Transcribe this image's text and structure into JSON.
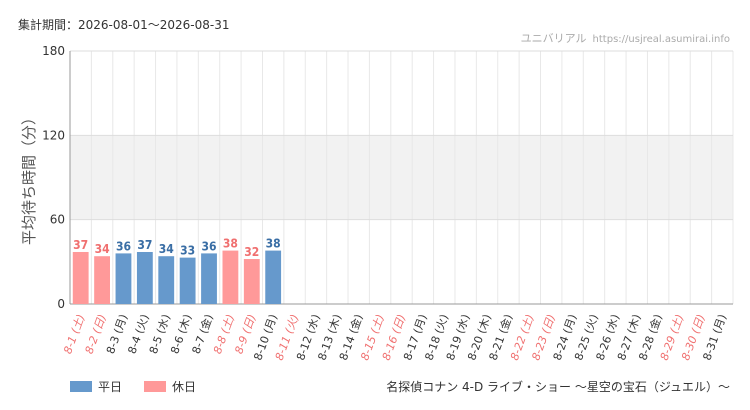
{
  "header": {
    "period": "集計期間：2026-08-01～2026-08-31",
    "site_name": "ユニバリアル",
    "site_url": "https://usjreal.asumirai.info"
  },
  "footer": {
    "attraction": "名探偵コナン 4-D ライブ・ショー ～星空の宝石（ジュエル）～"
  },
  "legend": [
    {
      "label": "平日",
      "color": "#6699cc"
    },
    {
      "label": "休日",
      "color": "#ff9999"
    }
  ],
  "chart_data": {
    "type": "bar",
    "ylabel": "平均待ち時間（分）",
    "ylim": [
      0,
      180
    ],
    "yticks": [
      0,
      60,
      120,
      180
    ],
    "shaded_band": [
      60,
      120
    ],
    "grid": true,
    "colors": {
      "weekday": "#6699cc",
      "holiday": "#ff9999",
      "weekday_label": "#3a6ea5",
      "holiday_label": "#f07070"
    },
    "categories": [
      "8-1 (土)",
      "8-2 (日)",
      "8-3 (月)",
      "8-4 (火)",
      "8-5 (水)",
      "8-6 (木)",
      "8-7 (金)",
      "8-8 (土)",
      "8-9 (日)",
      "8-10 (月)",
      "8-11 (火)",
      "8-12 (水)",
      "8-13 (木)",
      "8-14 (金)",
      "8-15 (土)",
      "8-16 (日)",
      "8-17 (月)",
      "8-18 (火)",
      "8-19 (水)",
      "8-20 (木)",
      "8-21 (金)",
      "8-22 (土)",
      "8-23 (日)",
      "8-24 (月)",
      "8-25 (火)",
      "8-26 (水)",
      "8-27 (木)",
      "8-28 (金)",
      "8-29 (土)",
      "8-30 (日)",
      "8-31 (月)"
    ],
    "holiday": [
      true,
      true,
      false,
      false,
      false,
      false,
      false,
      true,
      true,
      false,
      true,
      false,
      false,
      false,
      true,
      true,
      false,
      false,
      false,
      false,
      false,
      true,
      true,
      false,
      false,
      false,
      false,
      false,
      true,
      true,
      false
    ],
    "values": [
      37,
      34,
      36,
      37,
      34,
      33,
      36,
      38,
      32,
      38,
      null,
      null,
      null,
      null,
      null,
      null,
      null,
      null,
      null,
      null,
      null,
      null,
      null,
      null,
      null,
      null,
      null,
      null,
      null,
      null,
      null
    ]
  }
}
